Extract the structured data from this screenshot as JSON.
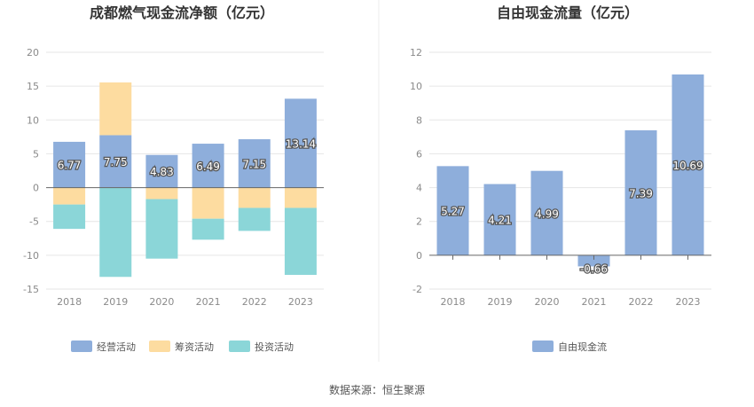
{
  "source": "数据来源：恒生聚源",
  "chart_data": [
    {
      "type": "bar",
      "stacked": true,
      "title": "成都燃气现金流净额（亿元）",
      "categories": [
        "2018",
        "2019",
        "2020",
        "2021",
        "2022",
        "2023"
      ],
      "ylim": [
        -15,
        20
      ],
      "yticks": [
        20,
        15,
        10,
        5,
        0,
        -5,
        -10,
        -15
      ],
      "grid": true,
      "legend_position": "bottom",
      "series": [
        {
          "name": "经营活动",
          "color": "#8eaedb",
          "values": [
            6.77,
            7.75,
            4.83,
            6.49,
            7.15,
            13.14
          ]
        },
        {
          "name": "筹资活动",
          "color": "#fddca0",
          "values": [
            -2.5,
            7.8,
            -1.7,
            -4.6,
            -3.0,
            -3.0
          ]
        },
        {
          "name": "投资活动",
          "color": "#8bd6d8",
          "values": [
            -3.6,
            -13.2,
            -8.8,
            -3.1,
            -3.4,
            -9.9
          ]
        }
      ],
      "data_labels_series": "经营活动",
      "data_labels": [
        "6.77",
        "7.75",
        "4.83",
        "6.49",
        "7.15",
        "13.14"
      ]
    },
    {
      "type": "bar",
      "title": "自由现金流量（亿元）",
      "categories": [
        "2018",
        "2019",
        "2020",
        "2021",
        "2022",
        "2023"
      ],
      "ylim": [
        -2,
        12
      ],
      "yticks": [
        12,
        10,
        8,
        6,
        4,
        2,
        0,
        -2
      ],
      "grid": true,
      "legend_position": "bottom",
      "series": [
        {
          "name": "自由现金流",
          "color": "#8eaedb",
          "values": [
            5.27,
            4.21,
            4.99,
            -0.66,
            7.39,
            10.69
          ]
        }
      ],
      "data_labels": [
        "5.27",
        "4.21",
        "4.99",
        "-0.66",
        "7.39",
        "10.69"
      ]
    }
  ]
}
